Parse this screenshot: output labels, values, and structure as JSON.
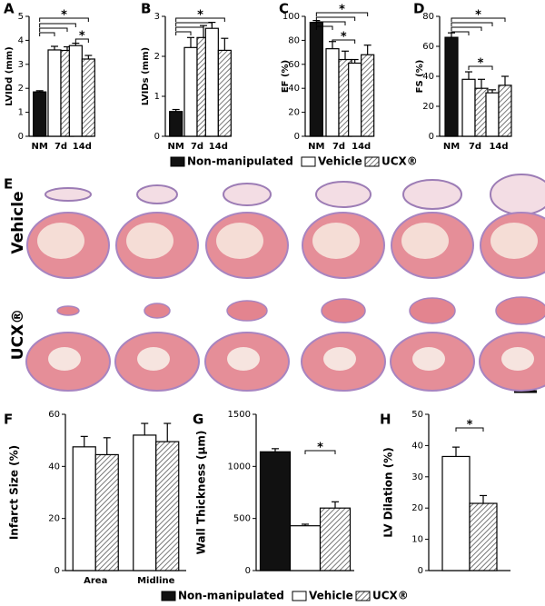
{
  "chart_data": [
    {
      "type": "bar",
      "panel": "A",
      "y_label": "LVIDd (mm)",
      "categories": [
        "NM",
        "7d",
        "14d"
      ],
      "series": [
        {
          "name": "Non-manipulated",
          "color": "#111111",
          "values": [
            1.85,
            null,
            null
          ],
          "errors": [
            0.05,
            null,
            null
          ]
        },
        {
          "name": "Vehicle",
          "color": "#ffffff",
          "values": [
            null,
            3.6,
            3.78
          ],
          "errors": [
            null,
            0.15,
            0.1
          ]
        },
        {
          "name": "UCX®",
          "color": "#555555",
          "hatch": true,
          "values": [
            null,
            3.58,
            3.22
          ],
          "errors": [
            null,
            0.15,
            0.15
          ]
        }
      ],
      "ylim": [
        0,
        5
      ],
      "yticks": [
        0,
        1,
        2,
        3,
        4,
        5
      ],
      "annotations": [
        "*",
        "*"
      ]
    },
    {
      "type": "bar",
      "panel": "B",
      "y_label": "LVIDs (mm)",
      "categories": [
        "NM",
        "7d",
        "14d"
      ],
      "series": [
        {
          "name": "Non-manipulated",
          "color": "#111111",
          "values": [
            0.62,
            null,
            null
          ],
          "errors": [
            0.05,
            null,
            null
          ]
        },
        {
          "name": "Vehicle",
          "color": "#ffffff",
          "values": [
            null,
            2.22,
            2.7
          ],
          "errors": [
            null,
            0.25,
            0.15
          ]
        },
        {
          "name": "UCX®",
          "color": "#555555",
          "hatch": true,
          "values": [
            null,
            2.47,
            2.15
          ],
          "errors": [
            null,
            0.3,
            0.3
          ]
        }
      ],
      "ylim": [
        0,
        3
      ],
      "yticks": [
        0,
        1,
        2,
        3
      ],
      "annotations": [
        "*"
      ]
    },
    {
      "type": "bar",
      "panel": "C",
      "y_label": "EF (%)",
      "categories": [
        "NM",
        "7d",
        "14d"
      ],
      "series": [
        {
          "name": "Non-manipulated",
          "color": "#111111",
          "values": [
            95,
            null,
            null
          ],
          "errors": [
            1.5,
            null,
            null
          ]
        },
        {
          "name": "Vehicle",
          "color": "#ffffff",
          "values": [
            null,
            73,
            61
          ],
          "errors": [
            null,
            6,
            3
          ]
        },
        {
          "name": "UCX®",
          "color": "#555555",
          "hatch": true,
          "values": [
            null,
            64,
            68
          ],
          "errors": [
            null,
            7,
            8
          ]
        }
      ],
      "ylim": [
        0,
        100
      ],
      "yticks": [
        0,
        20,
        40,
        60,
        80,
        100
      ],
      "annotations": [
        "*",
        "*"
      ]
    },
    {
      "type": "bar",
      "panel": "D",
      "y_label": "FS (%)",
      "categories": [
        "NM",
        "7d",
        "14d"
      ],
      "series": [
        {
          "name": "Non-manipulated",
          "color": "#111111",
          "values": [
            66,
            null,
            null
          ],
          "errors": [
            3,
            null,
            null
          ]
        },
        {
          "name": "Vehicle",
          "color": "#ffffff",
          "values": [
            null,
            38,
            29
          ],
          "errors": [
            null,
            5,
            2
          ]
        },
        {
          "name": "UCX®",
          "color": "#555555",
          "hatch": true,
          "values": [
            null,
            32,
            34
          ],
          "errors": [
            null,
            6,
            6
          ]
        }
      ],
      "ylim": [
        0,
        80
      ],
      "yticks": [
        0,
        20,
        40,
        60,
        80
      ],
      "annotations": [
        "*",
        "*"
      ]
    },
    {
      "type": "bar",
      "panel": "F",
      "y_label": "Infarct Size (%)",
      "categories": [
        "Area",
        "Midline"
      ],
      "series": [
        {
          "name": "Vehicle",
          "color": "#ffffff",
          "values": [
            47.5,
            52
          ],
          "errors": [
            4,
            4.5
          ]
        },
        {
          "name": "UCX®",
          "color": "#555555",
          "hatch": true,
          "values": [
            44.5,
            49.5
          ],
          "errors": [
            6.5,
            7
          ]
        }
      ],
      "ylim": [
        0,
        60
      ],
      "yticks": [
        0,
        20,
        40,
        60
      ],
      "annotations": []
    },
    {
      "type": "bar",
      "panel": "G",
      "y_label": "Wall Thickness (µm)",
      "categories": [
        null
      ],
      "series": [
        {
          "name": "Non-manipulated",
          "color": "#111111",
          "values": [
            1140
          ],
          "errors": [
            30
          ]
        },
        {
          "name": "Vehicle",
          "color": "#ffffff",
          "values": [
            430
          ],
          "errors": [
            15
          ]
        },
        {
          "name": "UCX®",
          "color": "#555555",
          "hatch": true,
          "values": [
            600
          ],
          "errors": [
            60
          ]
        }
      ],
      "ylim": [
        0,
        1500
      ],
      "yticks": [
        0,
        500,
        1000,
        1500
      ],
      "annotations": [
        "*"
      ]
    },
    {
      "type": "bar",
      "panel": "H",
      "y_label": "LV Dilation (%)",
      "categories": [
        null
      ],
      "series": [
        {
          "name": "Vehicle",
          "color": "#ffffff",
          "values": [
            36.5
          ],
          "errors": [
            3
          ]
        },
        {
          "name": "UCX®",
          "color": "#555555",
          "hatch": true,
          "values": [
            21.5
          ],
          "errors": [
            2.5
          ]
        }
      ],
      "ylim": [
        0,
        50
      ],
      "yticks": [
        0,
        10,
        20,
        30,
        40,
        50
      ],
      "annotations": [
        "*"
      ]
    }
  ],
  "panel_e": {
    "label": "E",
    "rows": [
      "Vehicle",
      "UCX®"
    ]
  }
}
